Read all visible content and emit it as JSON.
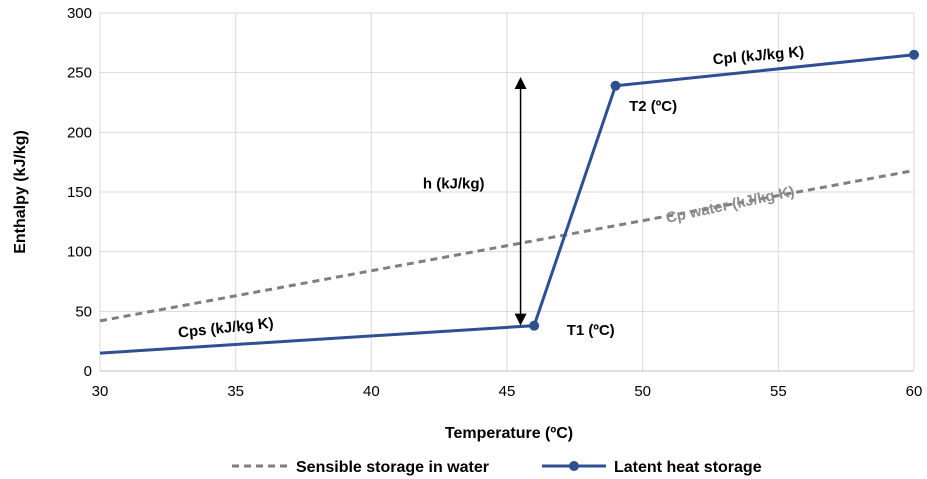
{
  "chart_data": {
    "type": "line",
    "title": "",
    "xlabel": "Temperature (ºC)",
    "ylabel": "Enthalpy (kJ/kg)",
    "xlim": [
      30,
      60
    ],
    "ylim": [
      0,
      300
    ],
    "x_ticks": [
      30,
      35,
      40,
      45,
      50,
      55,
      60
    ],
    "y_ticks": [
      0,
      50,
      100,
      150,
      200,
      250,
      300
    ],
    "grid": true,
    "legend_position": "bottom",
    "series": [
      {
        "name": "Sensible storage in water",
        "style": "dashed",
        "color": "#7f7f7f",
        "points": [
          [
            30,
            42
          ],
          [
            60,
            168
          ]
        ]
      },
      {
        "name": "Latent heat storage",
        "style": "solid-with-markers",
        "color": "#2f4f93",
        "points": [
          [
            30,
            15
          ],
          [
            46,
            38
          ],
          [
            49,
            239
          ],
          [
            60,
            265
          ]
        ],
        "markers": [
          [
            46,
            38
          ],
          [
            49,
            239
          ],
          [
            60,
            265
          ]
        ]
      }
    ],
    "annotations": {
      "cps": "Cps (kJ/kg K)",
      "cpl": "Cpl (kJ/kg K)",
      "cp_water": "Cp water (kJ/kg K)",
      "h": "h (kJ/kg)",
      "t1": "T1 (ºC)",
      "t2": "T2 (ºC)"
    },
    "h_arrow": {
      "x": 45.5,
      "y_from": 38,
      "y_to": 243
    }
  }
}
